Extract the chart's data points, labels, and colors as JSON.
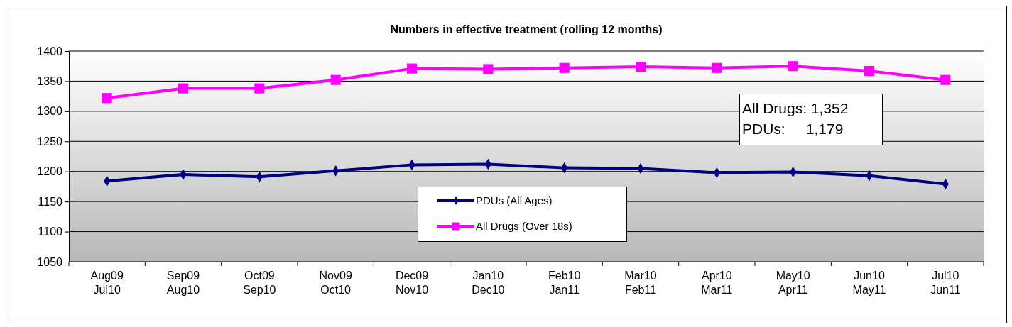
{
  "chart_data": {
    "type": "line",
    "title": "Numbers in effective treatment (rolling 12 months)",
    "categories": [
      "Aug09\nJul10",
      "Sep09\nAug10",
      "Oct09\nSep10",
      "Nov09\nOct10",
      "Dec09\nNov10",
      "Jan10\nDec10",
      "Feb10\nJan11",
      "Mar10\nFeb11",
      "Apr10\nMar11",
      "May10\nApr11",
      "Jun10\nMay11",
      "Jul10\nJun11"
    ],
    "series": [
      {
        "name": "PDUs (All Ages)",
        "color": "#000080",
        "marker": "diamond",
        "values": [
          1184,
          1195,
          1191,
          1201,
          1211,
          1212,
          1206,
          1205,
          1198,
          1199,
          1193,
          1179
        ]
      },
      {
        "name": "All Drugs (Over 18s)",
        "color": "#ff00ff",
        "marker": "square",
        "values": [
          1322,
          1338,
          1338,
          1352,
          1371,
          1370,
          1372,
          1374,
          1372,
          1375,
          1367,
          1352
        ]
      }
    ],
    "ylim": [
      1050,
      1400
    ],
    "yticks": [
      1050,
      1100,
      1150,
      1200,
      1250,
      1300,
      1350,
      1400
    ],
    "grid": "y",
    "legend": "bottom",
    "annotations": [
      "All Drugs: 1,352",
      "PDUs:     1,179"
    ]
  }
}
